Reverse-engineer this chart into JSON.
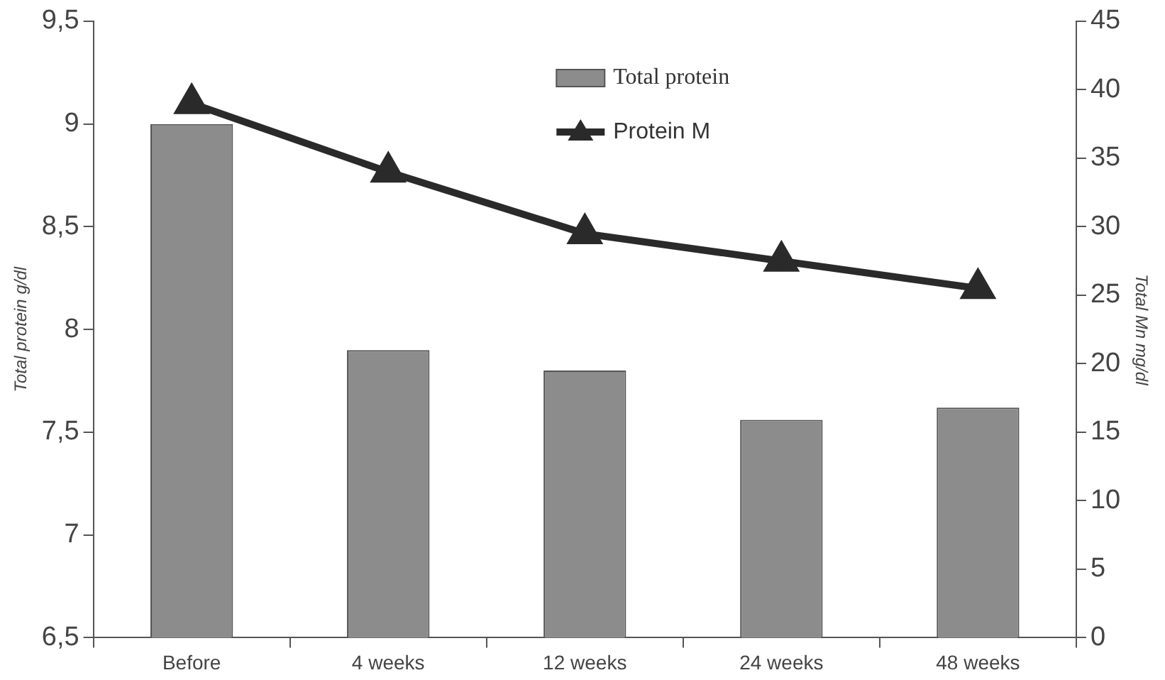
{
  "chart_data": {
    "type": "bar",
    "categories": [
      "Before",
      "4 weeks",
      "12 weeks",
      "24 weeks",
      "48 weeks"
    ],
    "series": [
      {
        "name": "Total protein",
        "color": "#8c8c8c",
        "values": [
          9.0,
          7.9,
          7.8,
          7.56,
          7.62
        ]
      },
      {
        "name": "Protein M",
        "type": "line",
        "axis": "y2",
        "color": "#2a2a2a",
        "values": [
          39,
          34,
          29.5,
          27.5,
          25.5
        ]
      }
    ],
    "ylabel": "Total protein g/dl",
    "y2label": "Total Mn mg/dl",
    "ylim": [
      6.5,
      9.5
    ],
    "yticks": [
      {
        "value": 6.5,
        "label": "6,5"
      },
      7,
      {
        "value": 7.5,
        "label": "7,5"
      },
      8,
      {
        "value": 8.5,
        "label": "8,5"
      },
      9,
      {
        "value": 9.5,
        "label": "9,5"
      }
    ],
    "y2lim": [
      0,
      45
    ],
    "y2ticks": [
      0,
      5,
      10,
      15,
      20,
      25,
      30,
      35,
      40,
      45
    ],
    "grid": false,
    "legend": "top",
    "marker": "triangle",
    "line_style": "solid"
  }
}
